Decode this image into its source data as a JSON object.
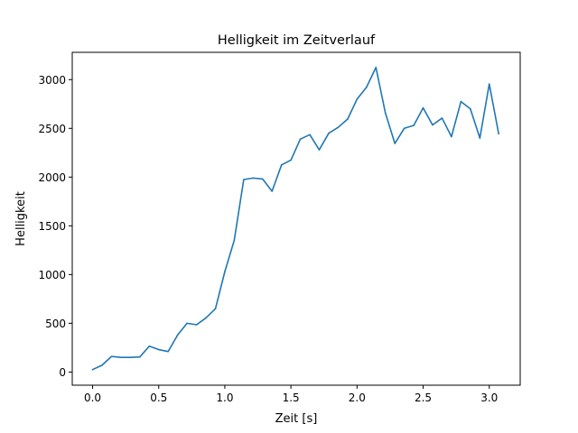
{
  "chart_data": {
    "type": "line",
    "title": "Helligkeit im Zeitverlauf",
    "xlabel": "Zeit [s]",
    "ylabel": "Helligkeit",
    "xlim": [
      -0.154,
      3.234
    ],
    "ylim": [
      -135,
      3280
    ],
    "xticks": [
      0.0,
      0.5,
      1.0,
      1.5,
      2.0,
      2.5,
      3.0
    ],
    "xtick_labels": [
      "0.0",
      "0.5",
      "1.0",
      "1.5",
      "2.0",
      "2.5",
      "3.0"
    ],
    "yticks": [
      0,
      500,
      1000,
      1500,
      2000,
      2500,
      3000
    ],
    "ytick_labels": [
      "0",
      "500",
      "1000",
      "1500",
      "2000",
      "2500",
      "3000"
    ],
    "grid": false,
    "colors": {
      "series": "#1f77b4"
    },
    "series": [
      {
        "x": [
          0.0,
          0.071,
          0.143,
          0.214,
          0.286,
          0.357,
          0.429,
          0.5,
          0.571,
          0.643,
          0.714,
          0.786,
          0.857,
          0.929,
          1.0,
          1.071,
          1.143,
          1.214,
          1.286,
          1.357,
          1.429,
          1.5,
          1.571,
          1.643,
          1.714,
          1.786,
          1.857,
          1.929,
          2.0,
          2.071,
          2.143,
          2.214,
          2.286,
          2.357,
          2.429,
          2.5,
          2.571,
          2.643,
          2.714,
          2.786,
          2.857,
          2.929,
          3.0,
          3.071
        ],
        "y": [
          25,
          70,
          160,
          150,
          150,
          155,
          265,
          230,
          210,
          380,
          500,
          485,
          555,
          650,
          1030,
          1350,
          1975,
          1990,
          1980,
          1855,
          2125,
          2175,
          2390,
          2435,
          2280,
          2450,
          2510,
          2595,
          2800,
          2920,
          3125,
          2660,
          2345,
          2500,
          2530,
          2710,
          2535,
          2605,
          2415,
          2775,
          2700,
          2400,
          2955,
          2445
        ]
      }
    ]
  }
}
